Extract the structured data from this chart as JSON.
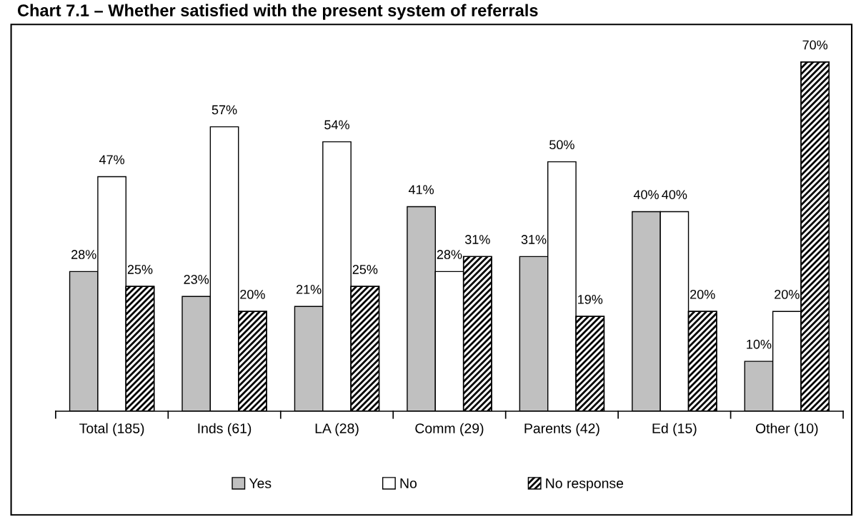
{
  "chart_data": {
    "type": "bar",
    "title": "Chart 7.1 – Whether satisfied with the present system of referrals",
    "categories": [
      "Total (185)",
      "Inds (61)",
      "LA (28)",
      "Comm (29)",
      "Parents (42)",
      "Ed (15)",
      "Other (10)"
    ],
    "series": [
      {
        "name": "Yes",
        "color": "#c0c0c0",
        "values": [
          28,
          23,
          21,
          41,
          31,
          40,
          10
        ],
        "value_labels": [
          "28%",
          "23%",
          "21%",
          "41%",
          "31%",
          "40%",
          "10%"
        ]
      },
      {
        "name": "No",
        "color": "#ffffff",
        "values": [
          47,
          57,
          54,
          28,
          50,
          40,
          20
        ],
        "value_labels": [
          "47%",
          "57%",
          "54%",
          "28%",
          "50%",
          "40%",
          "20%"
        ]
      },
      {
        "name": "No response",
        "color": "#000000",
        "values": [
          25,
          20,
          25,
          31,
          19,
          20,
          70
        ],
        "value_labels": [
          "25%",
          "20%",
          "25%",
          "31%",
          "19%",
          "20%",
          "70%"
        ]
      }
    ],
    "legend": "bottom",
    "grid": false
  }
}
